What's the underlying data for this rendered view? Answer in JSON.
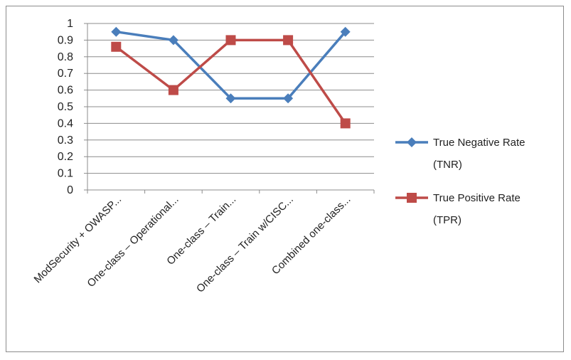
{
  "chart_data": {
    "type": "line",
    "categories": [
      "ModSecurity + OWASP...",
      "One-class – Operational...",
      "One-class – Train...",
      "One-class – Train w/CISC...",
      "Combined one-class..."
    ],
    "series": [
      {
        "name": "True Negative Rate (TNR)",
        "name_lines": [
          "True Negative Rate",
          "(TNR)"
        ],
        "values": [
          0.95,
          0.9,
          0.55,
          0.55,
          0.95
        ],
        "color": "#4a7ebb",
        "marker": "diamond"
      },
      {
        "name": "True Positive Rate (TPR)",
        "name_lines": [
          "True Positive Rate",
          "(TPR)"
        ],
        "values": [
          0.86,
          0.6,
          0.9,
          0.9,
          0.4
        ],
        "color": "#be4b48",
        "marker": "square"
      }
    ],
    "ylim": [
      0,
      1
    ],
    "yticks": [
      "0",
      "0.1",
      "0.2",
      "0.3",
      "0.4",
      "0.5",
      "0.6",
      "0.7",
      "0.8",
      "0.9",
      "1"
    ],
    "title": "",
    "xlabel": "",
    "ylabel": "",
    "grid": true,
    "legend_position": "right"
  }
}
